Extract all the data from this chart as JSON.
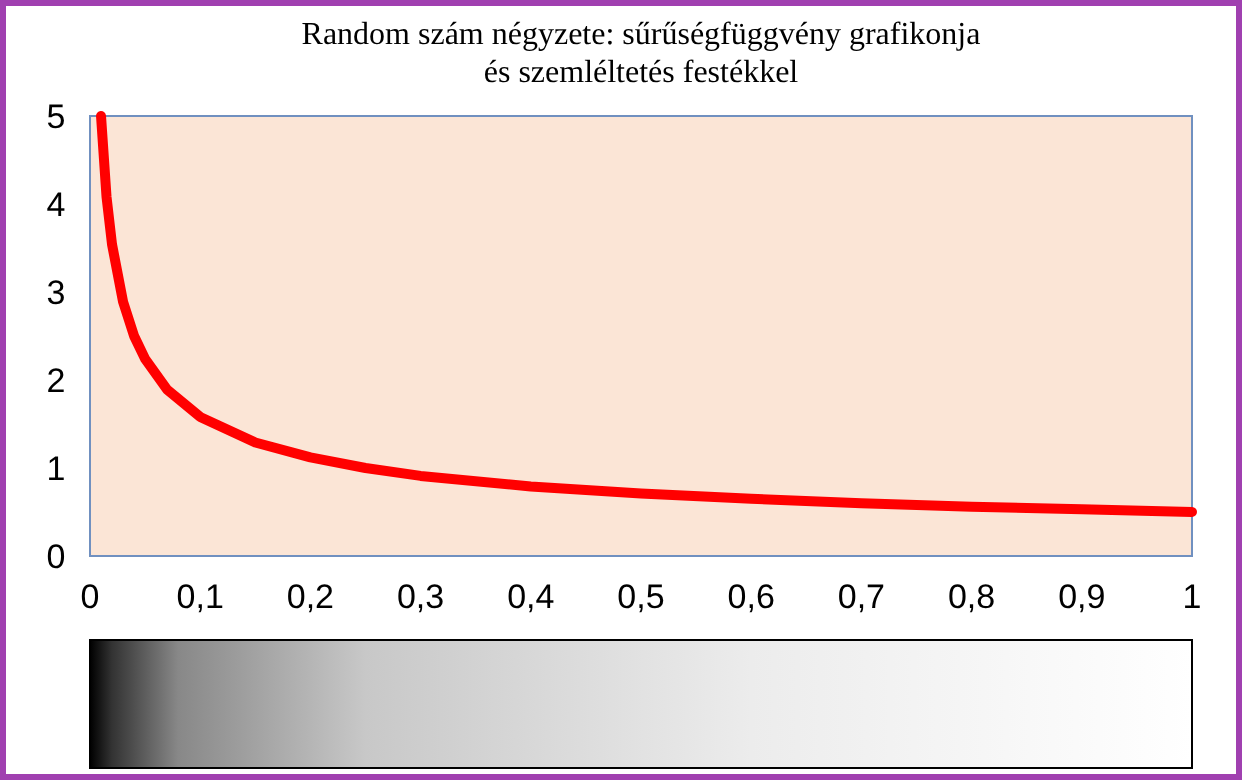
{
  "chart_data": {
    "type": "line",
    "title": "Random szám négyzete: sűrűségfüggvény grafikonja\nés szemléltetés festékkel",
    "x": [
      0.01,
      0.015,
      0.02,
      0.03,
      0.04,
      0.05,
      0.07,
      0.1,
      0.15,
      0.2,
      0.25,
      0.3,
      0.4,
      0.5,
      0.6,
      0.7,
      0.8,
      0.9,
      1
    ],
    "series": [
      {
        "color": "#ff0000",
        "values": [
          5,
          4.08,
          3.54,
          2.89,
          2.5,
          2.24,
          1.89,
          1.58,
          1.29,
          1.12,
          1,
          0.91,
          0.79,
          0.71,
          0.65,
          0.6,
          0.56,
          0.53,
          0.5
        ]
      }
    ],
    "xlim": [
      0,
      1
    ],
    "ylim": [
      0,
      5
    ],
    "xticks": [
      0,
      {
        "value": 0.1,
        "label": "0,1"
      },
      {
        "value": 0.2,
        "label": "0,2"
      },
      {
        "value": 0.3,
        "label": "0,3"
      },
      {
        "value": 0.4,
        "label": "0,4"
      },
      {
        "value": 0.5,
        "label": "0,5"
      },
      {
        "value": 0.6,
        "label": "0,6"
      },
      {
        "value": 0.7,
        "label": "0,7"
      },
      {
        "value": 0.8,
        "label": "0,8"
      },
      {
        "value": 0.9,
        "label": "0,9"
      },
      1
    ],
    "yticks": [
      0,
      1,
      2,
      3,
      4,
      5
    ],
    "marker": "none",
    "line_style": "solid"
  }
}
